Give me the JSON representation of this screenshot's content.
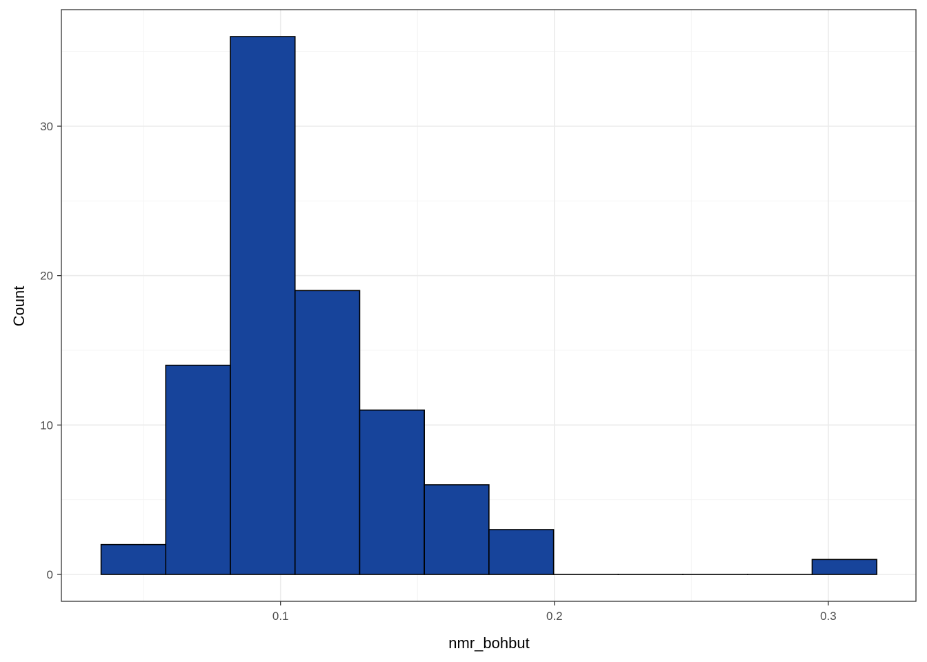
{
  "chart_data": {
    "type": "bar",
    "subtype": "histogram",
    "title": "",
    "xlabel": "nmr_bohbut",
    "ylabel": "Count",
    "bins": [
      {
        "x0": 0.0345,
        "x1": 0.0581,
        "count": 2
      },
      {
        "x0": 0.0581,
        "x1": 0.0817,
        "count": 14
      },
      {
        "x0": 0.0817,
        "x1": 0.1053,
        "count": 36
      },
      {
        "x0": 0.1053,
        "x1": 0.1289,
        "count": 19
      },
      {
        "x0": 0.1289,
        "x1": 0.1525,
        "count": 11
      },
      {
        "x0": 0.1525,
        "x1": 0.1761,
        "count": 6
      },
      {
        "x0": 0.1761,
        "x1": 0.1997,
        "count": 3
      },
      {
        "x0": 0.1997,
        "x1": 0.2233,
        "count": 0
      },
      {
        "x0": 0.2233,
        "x1": 0.2469,
        "count": 0
      },
      {
        "x0": 0.2469,
        "x1": 0.2705,
        "count": 0
      },
      {
        "x0": 0.2705,
        "x1": 0.2941,
        "count": 0
      },
      {
        "x0": 0.2941,
        "x1": 0.3177,
        "count": 1
      }
    ],
    "xlim": [
      0.02,
      0.332
    ],
    "ylim": [
      -1.8,
      37.8
    ],
    "x_ticks": [
      0.1,
      0.2,
      0.3
    ],
    "x_tick_labels": [
      "0.1",
      "0.2",
      "0.3"
    ],
    "x_minor_ticks": [
      0.05,
      0.15,
      0.25
    ],
    "y_ticks": [
      0,
      10,
      20,
      30
    ],
    "y_tick_labels": [
      "0",
      "10",
      "20",
      "30"
    ],
    "y_minor_ticks": [
      5,
      15,
      25,
      35
    ],
    "grid": true,
    "legend": "none",
    "colors": {
      "bar_fill": "#17449B",
      "bar_stroke": "#000000",
      "grid_major": "#EBEBEB",
      "grid_minor": "#F4F4F4",
      "panel_border": "#333333",
      "tick_text": "#4D4D4D"
    }
  }
}
